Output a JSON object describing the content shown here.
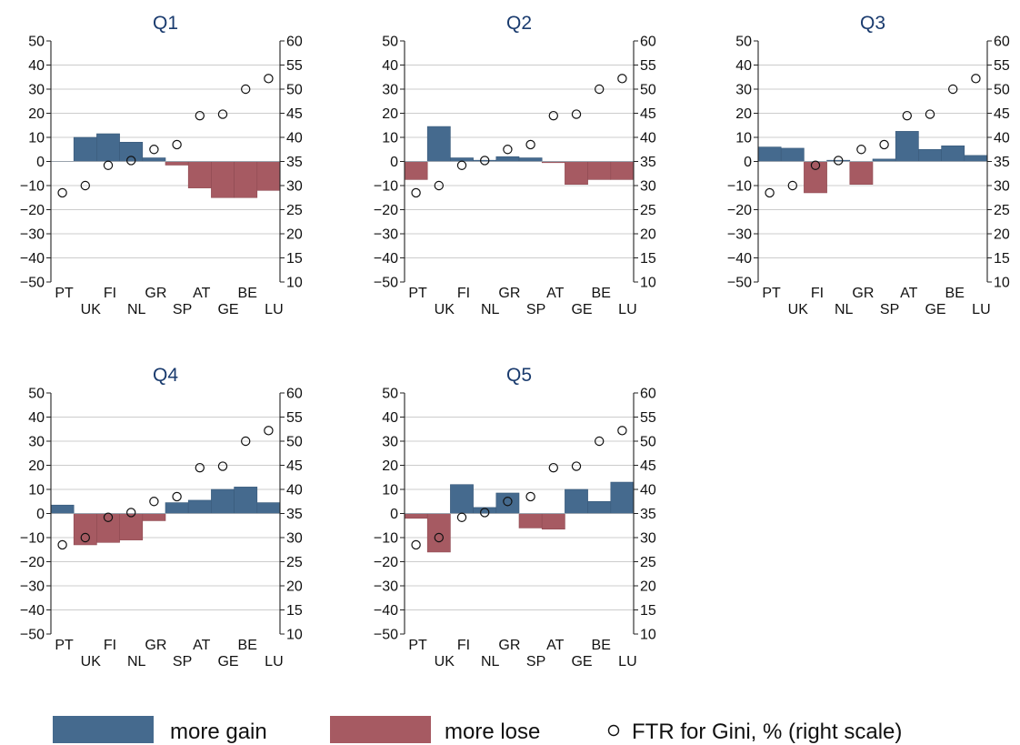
{
  "colors": {
    "gain": "#456a8e",
    "lose": "#a65a62",
    "grid": "#cccccc",
    "axis": "#222222",
    "title": "#1a3b6e"
  },
  "legend": {
    "gain_label": "more gain",
    "lose_label": "more lose",
    "ftr_label": "FTR for Gini, % (right scale)"
  },
  "chart_data": [
    {
      "type": "bar",
      "title": "Q1",
      "categories": [
        "PT",
        "UK",
        "FI",
        "NL",
        "GR",
        "SP",
        "AT",
        "GE",
        "BE",
        "LU"
      ],
      "ylim": [
        -50,
        50
      ],
      "y2lim": [
        10,
        60
      ],
      "yticks": [
        -50,
        -40,
        -30,
        -20,
        -10,
        0,
        10,
        20,
        30,
        40,
        50
      ],
      "y2ticks": [
        10,
        15,
        20,
        25,
        30,
        35,
        40,
        45,
        50,
        55,
        60
      ],
      "grid": true,
      "legend_position": "bottom",
      "series": [
        {
          "name": "more gain / more lose",
          "values": [
            0,
            10,
            11.5,
            8,
            1.5,
            -1.5,
            -11,
            -15,
            -15,
            -12
          ]
        },
        {
          "name": "FTR for Gini, % (right scale)",
          "axis": "right",
          "values": [
            28.5,
            30,
            34.2,
            35.2,
            37.5,
            38.5,
            44.5,
            44.8,
            50,
            52.2
          ]
        }
      ]
    },
    {
      "type": "bar",
      "title": "Q2",
      "categories": [
        "PT",
        "UK",
        "FI",
        "NL",
        "GR",
        "SP",
        "AT",
        "GE",
        "BE",
        "LU"
      ],
      "ylim": [
        -50,
        50
      ],
      "y2lim": [
        10,
        60
      ],
      "yticks": [
        -50,
        -40,
        -30,
        -20,
        -10,
        0,
        10,
        20,
        30,
        40,
        50
      ],
      "y2ticks": [
        10,
        15,
        20,
        25,
        30,
        35,
        40,
        45,
        50,
        55,
        60
      ],
      "grid": true,
      "legend_position": "bottom",
      "series": [
        {
          "name": "more gain / more lose",
          "values": [
            -7.5,
            14.5,
            1.5,
            0.5,
            2,
            1.5,
            -0.5,
            -9.5,
            -7.5,
            -7.5
          ]
        },
        {
          "name": "FTR for Gini, % (right scale)",
          "axis": "right",
          "values": [
            28.5,
            30,
            34.2,
            35.2,
            37.5,
            38.5,
            44.5,
            44.8,
            50,
            52.2
          ]
        }
      ]
    },
    {
      "type": "bar",
      "title": "Q3",
      "categories": [
        "PT",
        "UK",
        "FI",
        "NL",
        "GR",
        "SP",
        "AT",
        "GE",
        "BE",
        "LU"
      ],
      "ylim": [
        -50,
        50
      ],
      "y2lim": [
        10,
        60
      ],
      "yticks": [
        -50,
        -40,
        -30,
        -20,
        -10,
        0,
        10,
        20,
        30,
        40,
        50
      ],
      "y2ticks": [
        10,
        15,
        20,
        25,
        30,
        35,
        40,
        45,
        50,
        55,
        60
      ],
      "grid": true,
      "legend_position": "bottom",
      "series": [
        {
          "name": "more gain / more lose",
          "values": [
            6,
            5.5,
            -13,
            0.5,
            -9.5,
            1,
            12.5,
            5,
            6.5,
            2.5
          ]
        },
        {
          "name": "FTR for Gini, % (right scale)",
          "axis": "right",
          "values": [
            28.5,
            30,
            34.2,
            35.2,
            37.5,
            38.5,
            44.5,
            44.8,
            50,
            52.2
          ]
        }
      ]
    },
    {
      "type": "bar",
      "title": "Q4",
      "categories": [
        "PT",
        "UK",
        "FI",
        "NL",
        "GR",
        "SP",
        "AT",
        "GE",
        "BE",
        "LU"
      ],
      "ylim": [
        -50,
        50
      ],
      "y2lim": [
        10,
        60
      ],
      "yticks": [
        -50,
        -40,
        -30,
        -20,
        -10,
        0,
        10,
        20,
        30,
        40,
        50
      ],
      "y2ticks": [
        10,
        15,
        20,
        25,
        30,
        35,
        40,
        45,
        50,
        55,
        60
      ],
      "grid": true,
      "legend_position": "bottom",
      "series": [
        {
          "name": "more gain / more lose",
          "values": [
            3.5,
            -13,
            -12,
            -11,
            -3,
            4.5,
            5.5,
            10,
            11,
            4.5
          ]
        },
        {
          "name": "FTR for Gini, % (right scale)",
          "axis": "right",
          "values": [
            28.5,
            30,
            34.2,
            35.2,
            37.5,
            38.5,
            44.5,
            44.8,
            50,
            52.2
          ]
        }
      ]
    },
    {
      "type": "bar",
      "title": "Q5",
      "categories": [
        "PT",
        "UK",
        "FI",
        "NL",
        "GR",
        "SP",
        "AT",
        "GE",
        "BE",
        "LU"
      ],
      "ylim": [
        -50,
        50
      ],
      "y2lim": [
        10,
        60
      ],
      "yticks": [
        -50,
        -40,
        -30,
        -20,
        -10,
        0,
        10,
        20,
        30,
        40,
        50
      ],
      "y2ticks": [
        10,
        15,
        20,
        25,
        30,
        35,
        40,
        45,
        50,
        55,
        60
      ],
      "grid": true,
      "legend_position": "bottom",
      "series": [
        {
          "name": "more gain / more lose",
          "values": [
            -2,
            -16,
            12,
            2.5,
            8.5,
            -6,
            -6.5,
            10,
            5,
            13
          ]
        },
        {
          "name": "FTR for Gini, % (right scale)",
          "axis": "right",
          "values": [
            28.5,
            30,
            34.2,
            35.2,
            37.5,
            38.5,
            44.5,
            44.8,
            50,
            52.2
          ]
        }
      ]
    }
  ]
}
